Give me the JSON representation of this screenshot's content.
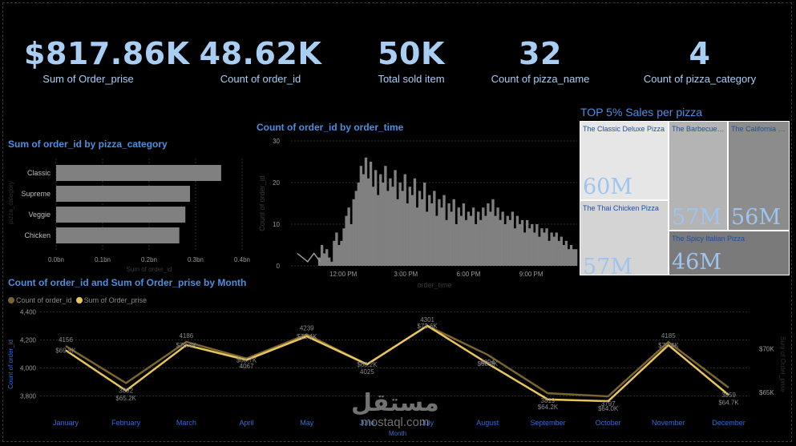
{
  "kpis": [
    {
      "value": "$817.86K",
      "label": "Sum of Order_prise"
    },
    {
      "value": "48.62K",
      "label": "Count of order_id"
    },
    {
      "value": "50K",
      "label": "Total sold item"
    },
    {
      "value": "32",
      "label": "Count of pizza_name"
    },
    {
      "value": "4",
      "label": "Count of pizza_category"
    }
  ],
  "colors": {
    "accent": "#4d8fe0",
    "kpi": "#a9cef3",
    "bar": "#808080",
    "line_count": "#7a6430",
    "line_sum": "#e8c65a"
  },
  "chart_data": [
    {
      "type": "bar",
      "orientation": "horizontal",
      "title": "Sum of order_id by pizza_category",
      "categories": [
        "Classic",
        "Supreme",
        "Veggie",
        "Chicken"
      ],
      "values": [
        0.355,
        0.288,
        0.278,
        0.265
      ],
      "xlabel": "Sum of order_id",
      "ylabel": "pizza_category",
      "xlim": [
        0,
        0.4
      ],
      "ticks": [
        "0.0bn",
        "0.1bn",
        "0.2bn",
        "0.3bn",
        "0.4bn"
      ]
    },
    {
      "type": "bar",
      "title": "Count of order_id by order_time",
      "xlabel": "order_time",
      "ylabel": "Count of order_id",
      "ylim": [
        0,
        30
      ],
      "yticks": [
        "0",
        "10",
        "20",
        "30"
      ],
      "xticks": [
        "12:00 PM",
        "3:00 PM",
        "6:00 PM",
        "9:00 PM"
      ],
      "hour_range": [
        9.5,
        23.2
      ],
      "values": [
        2,
        5,
        3,
        4,
        2,
        1,
        6,
        8,
        5,
        6,
        9,
        12,
        14,
        10,
        16,
        18,
        20,
        24,
        22,
        26,
        21,
        25,
        19,
        23,
        17,
        22,
        20,
        24,
        18,
        21,
        19,
        23,
        16,
        20,
        18,
        22,
        15,
        19,
        17,
        21,
        14,
        18,
        16,
        20,
        13,
        17,
        15,
        18,
        12,
        16,
        14,
        17,
        11,
        15,
        13,
        16,
        10,
        14,
        12,
        15,
        11,
        13,
        12,
        14,
        10,
        13,
        11,
        14,
        12,
        15,
        13,
        16,
        12,
        14,
        11,
        13,
        10,
        12,
        11,
        13,
        9,
        12,
        10,
        11,
        8,
        11,
        9,
        10,
        8,
        10,
        7,
        9,
        8,
        9,
        6,
        8,
        7,
        8,
        6,
        7,
        5,
        6,
        4,
        5,
        4,
        4
      ]
    },
    {
      "type": "line",
      "title": "Count of order_id and Sum of Order_prise by Month",
      "categories": [
        "January",
        "February",
        "March",
        "April",
        "May",
        "June",
        "July",
        "August",
        "September",
        "October",
        "November",
        "December"
      ],
      "xlabel": "Month",
      "ylabel": "Count of order_id",
      "ylabel_right": "Sum of Order_prise",
      "ylim": [
        3700,
        4420
      ],
      "yticks": [
        "4,400",
        "4,200",
        "4,000",
        "3,800"
      ],
      "ylim_right": [
        63000,
        74500
      ],
      "yticks_right": [
        "$70K",
        "$65K"
      ],
      "series": [
        {
          "name": "Count of order_id",
          "values": [
            4156,
            3892,
            4186,
            4067,
            4239,
            4025,
            4301,
            4094,
            3819,
            3797,
            4185,
            3859
          ],
          "labels": [
            "4156",
            "3892",
            "4186",
            "4067",
            "4239",
            "4025",
            "4301",
            "4094",
            "3819",
            "3797",
            "4185",
            "3859"
          ]
        },
        {
          "name": "Sum of Order_prise",
          "values": [
            69800,
            65200,
            70400,
            68700,
            71400,
            68200,
            72600,
            68300,
            64200,
            64000,
            70400,
            64700
          ],
          "labels": [
            "$69.8K",
            "$65.2K",
            "$70.4K",
            "$68.7K",
            "$71.4K",
            "$68.2K",
            "$72.6K",
            "$68.3K",
            "$64.2K",
            "$64.0K",
            "$70.4K",
            "$64.7K"
          ]
        }
      ]
    }
  ],
  "treemap": {
    "title": "TOP 5% Sales per pizza",
    "items": [
      {
        "name": "The Classic Deluxe Pizza",
        "value": "60M",
        "color": "#e6e6e6"
      },
      {
        "name": "The Barbecue Chicken Pizza",
        "value": "57M",
        "color": "#b4b4b4"
      },
      {
        "name": "The California Chicken Pizza",
        "value": "56M",
        "color": "#8c8c8c"
      },
      {
        "name": "The Thai Chicken Pizza",
        "value": "57M",
        "color": "#d4d4d4"
      },
      {
        "name": "The Spicy Italian Pizza",
        "value": "46M",
        "color": "#7a7a7a"
      }
    ]
  },
  "watermark": {
    "arabic": "مستقل",
    "latin": "mostaql.com"
  }
}
